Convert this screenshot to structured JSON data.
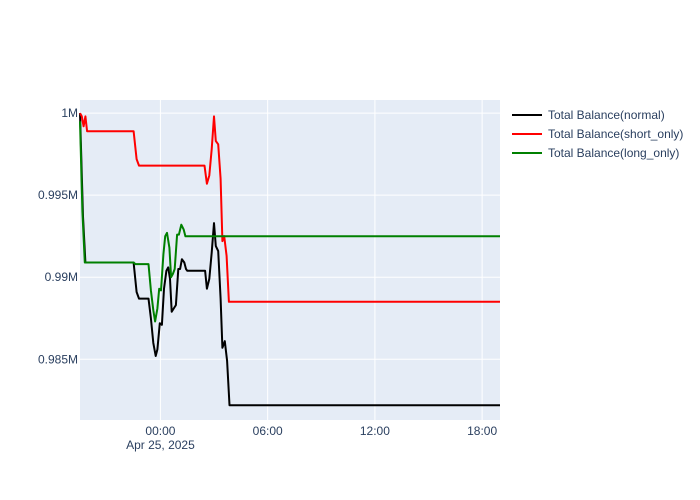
{
  "chart_data": {
    "type": "line",
    "title": "",
    "xlabel": "",
    "ylabel": "",
    "x_domain": [
      "2025-04-24 19:30",
      "2025-04-25 19:00"
    ],
    "y_domain": [
      0.9813,
      1.0008
    ],
    "x_ticks": [
      {
        "x": "2025-04-25 00:00",
        "label": "00:00",
        "sublabel": "Apr 25, 2025"
      },
      {
        "x": "2025-04-25 06:00",
        "label": "06:00",
        "sublabel": ""
      },
      {
        "x": "2025-04-25 12:00",
        "label": "12:00",
        "sublabel": ""
      },
      {
        "x": "2025-04-25 18:00",
        "label": "18:00",
        "sublabel": ""
      }
    ],
    "y_ticks": [
      {
        "value": 0.985,
        "label": "0.985M"
      },
      {
        "value": 0.99,
        "label": "0.99M"
      },
      {
        "value": 0.995,
        "label": "0.995M"
      },
      {
        "value": 1.0,
        "label": "1M"
      }
    ],
    "grid": true,
    "legend_position": "right",
    "colors": {
      "plot_bg": "#e5ecf6",
      "grid": "#ffffff",
      "text": "#2a3f5f"
    },
    "series": [
      {
        "name": "Total Balance(normal)",
        "color": "#000000",
        "points": [
          [
            "2025-04-24 19:30",
            1.0
          ],
          [
            "2025-04-24 19:40",
            0.9937
          ],
          [
            "2025-04-24 19:48",
            0.9909
          ],
          [
            "2025-04-24 22:00",
            0.9909
          ],
          [
            "2025-04-24 22:30",
            0.9909
          ],
          [
            "2025-04-24 22:40",
            0.9891
          ],
          [
            "2025-04-24 22:48",
            0.9887
          ],
          [
            "2025-04-24 23:20",
            0.9887
          ],
          [
            "2025-04-24 23:28",
            0.9875
          ],
          [
            "2025-04-24 23:36",
            0.986
          ],
          [
            "2025-04-24 23:44",
            0.9852
          ],
          [
            "2025-04-24 23:50",
            0.9856
          ],
          [
            "2025-04-24 23:58",
            0.9872
          ],
          [
            "2025-04-25 00:05",
            0.9871
          ],
          [
            "2025-04-25 00:12",
            0.9893
          ],
          [
            "2025-04-25 00:20",
            0.9904
          ],
          [
            "2025-04-25 00:26",
            0.9906
          ],
          [
            "2025-04-25 00:32",
            0.9899
          ],
          [
            "2025-04-25 00:38",
            0.9879
          ],
          [
            "2025-04-25 00:45",
            0.9881
          ],
          [
            "2025-04-25 00:52",
            0.9883
          ],
          [
            "2025-04-25 01:00",
            0.9905
          ],
          [
            "2025-04-25 01:06",
            0.9905
          ],
          [
            "2025-04-25 01:12",
            0.9911
          ],
          [
            "2025-04-25 01:20",
            0.9909
          ],
          [
            "2025-04-25 01:26",
            0.9905
          ],
          [
            "2025-04-25 01:30",
            0.9904
          ],
          [
            "2025-04-25 02:30",
            0.9904
          ],
          [
            "2025-04-25 02:36",
            0.9893
          ],
          [
            "2025-04-25 02:44",
            0.9899
          ],
          [
            "2025-04-25 02:52",
            0.9915
          ],
          [
            "2025-04-25 03:00",
            0.9933
          ],
          [
            "2025-04-25 03:06",
            0.9919
          ],
          [
            "2025-04-25 03:14",
            0.9916
          ],
          [
            "2025-04-25 03:22",
            0.9887
          ],
          [
            "2025-04-25 03:28",
            0.9857
          ],
          [
            "2025-04-25 03:36",
            0.9861
          ],
          [
            "2025-04-25 03:44",
            0.9849
          ],
          [
            "2025-04-25 03:52",
            0.9822
          ],
          [
            "2025-04-25 19:00",
            0.9822
          ]
        ]
      },
      {
        "name": "Total Balance(short_only)",
        "color": "#ff0000",
        "points": [
          [
            "2025-04-24 19:30",
            1.0
          ],
          [
            "2025-04-24 19:36",
            0.9998
          ],
          [
            "2025-04-24 19:42",
            0.9992
          ],
          [
            "2025-04-24 19:48",
            0.9998
          ],
          [
            "2025-04-24 19:54",
            0.9989
          ],
          [
            "2025-04-24 22:30",
            0.9989
          ],
          [
            "2025-04-24 22:40",
            0.9972
          ],
          [
            "2025-04-24 22:48",
            0.9968
          ],
          [
            "2025-04-25 02:28",
            0.9968
          ],
          [
            "2025-04-25 02:36",
            0.9957
          ],
          [
            "2025-04-25 02:44",
            0.9962
          ],
          [
            "2025-04-25 02:52",
            0.9978
          ],
          [
            "2025-04-25 03:00",
            0.9998
          ],
          [
            "2025-04-25 03:06",
            0.9983
          ],
          [
            "2025-04-25 03:14",
            0.9981
          ],
          [
            "2025-04-25 03:22",
            0.996
          ],
          [
            "2025-04-25 03:28",
            0.9922
          ],
          [
            "2025-04-25 03:34",
            0.9925
          ],
          [
            "2025-04-25 03:42",
            0.9913
          ],
          [
            "2025-04-25 03:50",
            0.9885
          ],
          [
            "2025-04-25 19:00",
            0.9885
          ]
        ]
      },
      {
        "name": "Total Balance(long_only)",
        "color": "#008000",
        "points": [
          [
            "2025-04-24 19:30",
            0.9995
          ],
          [
            "2025-04-24 19:38",
            0.994
          ],
          [
            "2025-04-24 19:46",
            0.9909
          ],
          [
            "2025-04-24 22:30",
            0.9909
          ],
          [
            "2025-04-24 22:36",
            0.9908
          ],
          [
            "2025-04-24 23:20",
            0.9908
          ],
          [
            "2025-04-24 23:28",
            0.9892
          ],
          [
            "2025-04-24 23:36",
            0.988
          ],
          [
            "2025-04-24 23:42",
            0.9873
          ],
          [
            "2025-04-24 23:50",
            0.9881
          ],
          [
            "2025-04-24 23:56",
            0.9893
          ],
          [
            "2025-04-25 00:02",
            0.9892
          ],
          [
            "2025-04-25 00:10",
            0.9914
          ],
          [
            "2025-04-25 00:16",
            0.9925
          ],
          [
            "2025-04-25 00:22",
            0.9927
          ],
          [
            "2025-04-25 00:30",
            0.9918
          ],
          [
            "2025-04-25 00:36",
            0.99
          ],
          [
            "2025-04-25 00:42",
            0.9902
          ],
          [
            "2025-04-25 00:48",
            0.9905
          ],
          [
            "2025-04-25 00:56",
            0.9926
          ],
          [
            "2025-04-25 01:02",
            0.9926
          ],
          [
            "2025-04-25 01:10",
            0.9932
          ],
          [
            "2025-04-25 01:18",
            0.9929
          ],
          [
            "2025-04-25 01:24",
            0.9925
          ],
          [
            "2025-04-25 19:00",
            0.9925
          ]
        ]
      }
    ]
  }
}
